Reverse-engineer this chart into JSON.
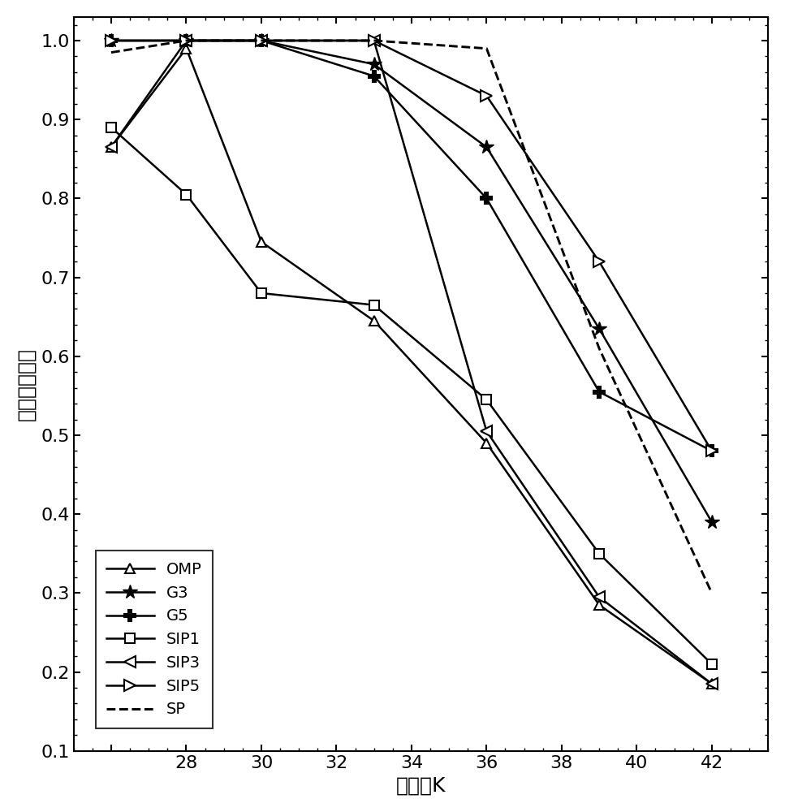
{
  "series": {
    "OMP": {
      "x": [
        26,
        28,
        30,
        33,
        36,
        39,
        42
      ],
      "y": [
        0.865,
        0.99,
        0.745,
        0.645,
        0.49,
        0.285,
        0.185
      ],
      "marker": "^",
      "linestyle": "-",
      "label": "OMP"
    },
    "G3": {
      "x": [
        26,
        28,
        30,
        33,
        36,
        39,
        42
      ],
      "y": [
        1.0,
        1.0,
        1.0,
        0.97,
        0.865,
        0.635,
        0.39
      ],
      "marker": "*",
      "linestyle": "-",
      "label": "G3"
    },
    "G5": {
      "x": [
        26,
        28,
        30,
        33,
        36,
        39,
        42
      ],
      "y": [
        1.0,
        1.0,
        1.0,
        0.955,
        0.8,
        0.555,
        0.48
      ],
      "marker": "+",
      "linestyle": "-",
      "label": "G5"
    },
    "SIP1": {
      "x": [
        26,
        28,
        30,
        33,
        36,
        39,
        42
      ],
      "y": [
        0.89,
        0.805,
        0.68,
        0.665,
        0.545,
        0.35,
        0.21
      ],
      "marker": "s",
      "linestyle": "-",
      "label": "SIP1"
    },
    "SIP3": {
      "x": [
        26,
        28,
        30,
        33,
        36,
        39,
        42
      ],
      "y": [
        0.865,
        1.0,
        1.0,
        1.0,
        0.505,
        0.295,
        0.185
      ],
      "marker": "<",
      "linestyle": "-",
      "label": "SIP3"
    },
    "SIP5": {
      "x": [
        26,
        28,
        30,
        33,
        36,
        39,
        42
      ],
      "y": [
        1.0,
        1.0,
        1.0,
        1.0,
        0.93,
        0.72,
        0.48
      ],
      "marker": ">",
      "linestyle": "-",
      "label": "SIP5"
    },
    "SP": {
      "x": [
        26,
        28,
        30,
        33,
        36,
        39,
        42
      ],
      "y": [
        0.985,
        1.0,
        1.0,
        1.0,
        0.99,
        0.61,
        0.3
      ],
      "marker": "",
      "linestyle": "--",
      "label": "SP"
    }
  },
  "order": [
    "OMP",
    "G3",
    "G5",
    "SIP1",
    "SIP3",
    "SIP5",
    "SP"
  ],
  "xlabel": "稀疏度K",
  "ylabel": "准确重构概率",
  "xlim": [
    25.0,
    43.5
  ],
  "ylim": [
    0.1,
    1.03
  ],
  "xticks": [
    26,
    28,
    30,
    32,
    34,
    36,
    38,
    40,
    42
  ],
  "xticklabels": [
    "",
    "28",
    "30",
    "32",
    "34",
    "36",
    "38",
    "40",
    "42"
  ],
  "yticks": [
    0.1,
    0.2,
    0.3,
    0.4,
    0.5,
    0.6,
    0.7,
    0.8,
    0.9,
    1.0
  ],
  "background": "#ffffff",
  "linewidth": 1.8,
  "markersize_tri": 9,
  "markersize_star": 13,
  "markersize_plus": 13,
  "markersize_sq": 9,
  "markersize_arrow": 10
}
